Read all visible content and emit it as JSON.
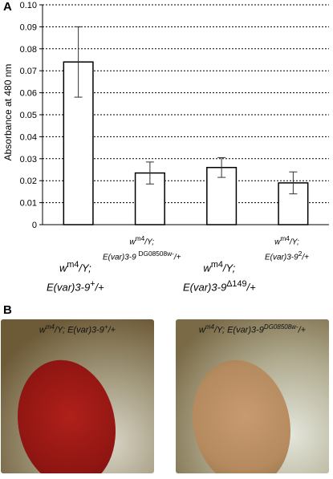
{
  "panel_a_label": "A",
  "panel_b_label": "B",
  "chart_data": {
    "type": "bar",
    "ylabel": "Absorbance at 480 nm",
    "ylim": [
      0,
      0.1
    ],
    "yticks": [
      "0",
      "0.01",
      "0.02",
      "0.03",
      "0.04",
      "0.05",
      "0.06",
      "0.07",
      "0.08",
      "0.09",
      "0.10"
    ],
    "grid": "horizontal-dashed",
    "categories": [
      "wm4/Y; E(var)3-9+/+",
      "wm4/Y; E(var)3-9 DG08508w-/+",
      "wm4/Y; E(var)3-9Δ149/+",
      "wm4/Y; E(var)3-92/+"
    ],
    "values": [
      0.074,
      0.0235,
      0.026,
      0.019
    ],
    "errors": [
      0.016,
      0.005,
      0.0045,
      0.005
    ],
    "bar_color": "#ffffff"
  },
  "labels": {
    "c0": {
      "l1a": "w",
      "l1sup": "m4",
      "l1b": "/Y;",
      "l2a": "E(var)3-9",
      "l2sup": "+",
      "l2b": "/+"
    },
    "c1": {
      "l1a": "w",
      "l1sup": "m4",
      "l1b": "/Y;",
      "l2a": "E(var)3-9 ",
      "l2sup": "DG08508w-",
      "l2b": "/+"
    },
    "c2": {
      "l1a": "w",
      "l1sup": "m4",
      "l1b": "/Y;",
      "l2a": "E(var)3-9",
      "l2sup": "Δ149",
      "l2b": "/+"
    },
    "c3": {
      "l1a": "w",
      "l1sup": "m4",
      "l1b": "/Y;",
      "l2a": "E(var)3-9",
      "l2sup": "2",
      "l2b": "/+"
    }
  },
  "photos": {
    "left": {
      "a": "w",
      "sup1": "m4",
      "b": "/Y; E(var)3-9",
      "sup2": "+",
      "c": "/+",
      "eye_color": "#b0201a"
    },
    "right": {
      "a": "w",
      "sup1": "m4",
      "b": "/Y; E(var)3-9",
      "sup2": "DG08508w-",
      "c": "/+",
      "eye_color": "#c99a70"
    }
  }
}
